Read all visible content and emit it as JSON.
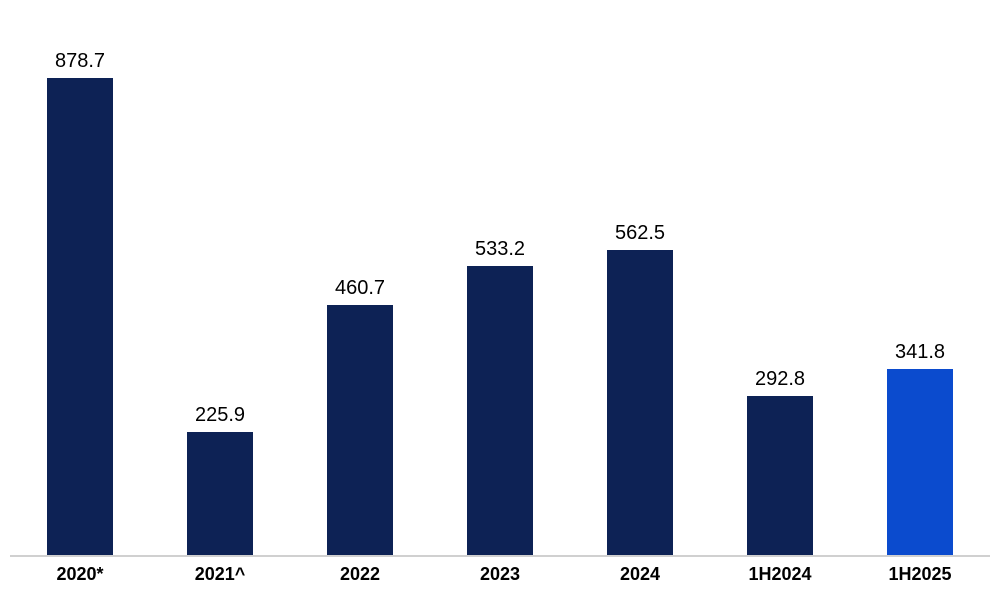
{
  "chart_data": {
    "type": "bar",
    "categories": [
      "2020*",
      "2021^",
      "2022",
      "2023",
      "2024",
      "1H2024",
      "1H2025"
    ],
    "values": [
      878.7,
      225.9,
      460.7,
      533.2,
      562.5,
      292.8,
      341.8
    ],
    "data_labels": [
      "878.7",
      "225.9",
      "460.7",
      "533.2",
      "562.5",
      "292.8",
      "341.8"
    ],
    "highlight_index": 6,
    "title": "",
    "xlabel": "",
    "ylabel": "",
    "ylim": [
      0,
      900
    ],
    "grid": false,
    "legend": false,
    "data_labels_shown": true
  },
  "style": {
    "bar_color": "#0d2255",
    "highlight_bar_color": "#0b4bce",
    "axis_line_color": "#d0d0d0",
    "label_color": "#000000",
    "background_color": "#ffffff"
  }
}
